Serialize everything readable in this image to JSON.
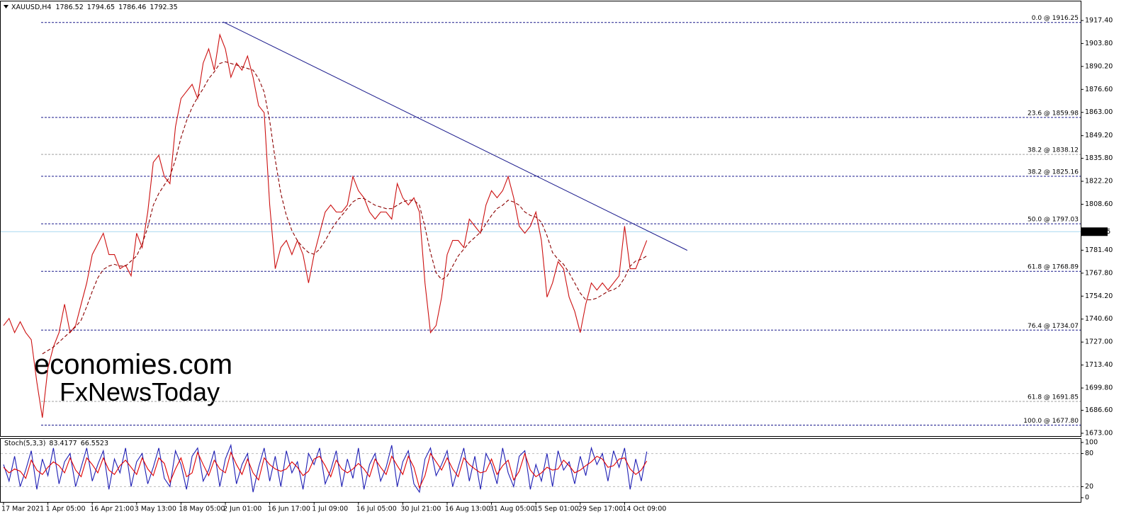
{
  "chart_data": [
    {
      "type": "line",
      "title": "XAUUSD,H4",
      "ohlc": [
        1786.52,
        1794.65,
        1786.46,
        1792.35
      ],
      "categories": [
        "17 Mar 2021",
        null,
        null,
        null,
        null,
        null,
        null,
        null,
        "1 Apr 05:00",
        null,
        null,
        null,
        null,
        null,
        null,
        null,
        "16 Apr 21:00",
        null,
        null,
        null,
        null,
        null,
        null,
        null,
        "3 May 13:00",
        null,
        null,
        null,
        null,
        null,
        null,
        null,
        "18 May 05:00",
        null,
        null,
        null,
        null,
        null,
        null,
        null,
        "2 Jun 01:00",
        null,
        null,
        null,
        null,
        null,
        null,
        null,
        "16 Jun 17:00",
        null,
        null,
        null,
        null,
        null,
        null,
        null,
        "1 Jul 09:00",
        null,
        null,
        null,
        null,
        null,
        null,
        null,
        "16 Jul 05:00",
        null,
        null,
        null,
        null,
        null,
        null,
        null,
        "30 Jul 21:00",
        null,
        null,
        null,
        null,
        null,
        null,
        null,
        "16 Aug 13:00",
        null,
        null,
        null,
        null,
        null,
        null,
        null,
        "31 Aug 05:00",
        null,
        null,
        null,
        null,
        null,
        null,
        null,
        "15 Sep 01:00",
        null,
        null,
        null,
        null,
        null,
        null,
        null,
        "29 Sep 17:00",
        null,
        null,
        null,
        null,
        null,
        null,
        null,
        "14 Oct 09:00",
        null,
        null,
        null,
        null
      ],
      "series": [
        {
          "color": "#cc1010",
          "dashed": false,
          "values": [
            1736.8,
            1741,
            1732.6,
            1739,
            1732.6,
            1728.4,
            1703.2,
            1682.2,
            1711.6,
            1724.2,
            1732.6,
            1749.4,
            1732.6,
            1736.8,
            1749.4,
            1762,
            1778.8,
            1785.1,
            1791.4,
            1778.8,
            1778.8,
            1770.4,
            1772.5,
            1766.2,
            1791.4,
            1783,
            1804,
            1833.4,
            1837.6,
            1825,
            1820.8,
            1854.4,
            1871.2,
            1875.4,
            1879.6,
            1871.2,
            1892.2,
            1900.6,
            1888,
            1909,
            1900.6,
            1883.8,
            1892.2,
            1888,
            1896.4,
            1883.8,
            1867,
            1862.8,
            1808.2,
            1770.4,
            1783,
            1787.2,
            1778.8,
            1787.2,
            1778.8,
            1762,
            1778.8,
            1791.4,
            1804,
            1808.2,
            1804,
            1804,
            1808.2,
            1825,
            1816.6,
            1812.4,
            1804,
            1799.8,
            1804,
            1804,
            1799.8,
            1820.8,
            1812.4,
            1808.2,
            1812.4,
            1804,
            1762,
            1732.6,
            1736.8,
            1753.6,
            1778.8,
            1787.2,
            1787.2,
            1783,
            1799.8,
            1795.6,
            1791.4,
            1808.2,
            1816.6,
            1812.4,
            1816.6,
            1825,
            1812.4,
            1795.6,
            1791.4,
            1795.6,
            1804,
            1787.2,
            1753.6,
            1762,
            1774.6,
            1770.4,
            1753.6,
            1745.2,
            1732.6,
            1749.4,
            1762,
            1757.8,
            1762,
            1757.8,
            1762,
            1766.2,
            1795.6,
            1770.4,
            1770.4,
            1778.8,
            1787.2
          ]
        },
        {
          "color": "#8b0000",
          "dashed": true,
          "values": [
            null,
            null,
            null,
            null,
            null,
            null,
            null,
            1720,
            1722,
            1724,
            1727,
            1730,
            1733,
            1736,
            1740,
            1748,
            1757,
            1765,
            1770,
            1772,
            1773,
            1772,
            1772,
            1775,
            1778,
            1785,
            1795,
            1808,
            1815,
            1820,
            1825,
            1835,
            1848,
            1858,
            1866,
            1872,
            1877,
            1883,
            1887,
            1892,
            1893,
            1892,
            1891,
            1890,
            1889,
            1888,
            1883,
            1875,
            1858,
            1835,
            1815,
            1802,
            1793,
            1787,
            1783,
            1780,
            1779,
            1782,
            1787,
            1793,
            1798,
            1802,
            1806,
            1810,
            1812,
            1812,
            1810,
            1808,
            1807,
            1806,
            1806,
            1808,
            1810,
            1811,
            1811,
            1808,
            1795,
            1780,
            1768,
            1764,
            1766,
            1772,
            1778,
            1782,
            1786,
            1789,
            1792,
            1797,
            1802,
            1806,
            1808,
            1811,
            1810,
            1808,
            1804,
            1802,
            1801,
            1798,
            1790,
            1780,
            1776,
            1773,
            1768,
            1762,
            1756,
            1752,
            1752,
            1753,
            1755,
            1757,
            1758,
            1760,
            1765,
            1772,
            1775,
            1776,
            1778
          ]
        }
      ],
      "ylim": [
        1670.9,
        1928.7
      ],
      "yticks": [
        {
          "value": 1917.4,
          "label": "1917.40"
        },
        {
          "value": 1903.8,
          "label": "1903.80"
        },
        {
          "value": 1890.2,
          "label": "1890.20"
        },
        {
          "value": 1876.6,
          "label": "1876.60"
        },
        {
          "value": 1863,
          "label": "1863.00"
        },
        {
          "value": 1849.2,
          "label": "1849.20"
        },
        {
          "value": 1835.8,
          "label": "1835.80"
        },
        {
          "value": 1822.2,
          "label": "1822.20"
        },
        {
          "value": 1808.6,
          "label": "1808.60"
        },
        {
          "value": 1781.4,
          "label": "1781.40"
        },
        {
          "value": 1767.8,
          "label": "1767.80"
        },
        {
          "value": 1754.2,
          "label": "1754.20"
        },
        {
          "value": 1740.6,
          "label": "1740.60"
        },
        {
          "value": 1727,
          "label": "1727.00"
        },
        {
          "value": 1713.4,
          "label": "1713.40"
        },
        {
          "value": 1699.8,
          "label": "1699.80"
        },
        {
          "value": 1686.6,
          "label": "1686.60"
        },
        {
          "value": 1673,
          "label": "1673.00"
        }
      ],
      "fib_levels": [
        {
          "value": 1916.25,
          "label": "0.0 @ 1916.25",
          "color": "#1a1a8c"
        },
        {
          "value": 1859.98,
          "label": "23.6 @ 1859.98",
          "color": "#1a1a8c"
        },
        {
          "value": 1838.12,
          "label": "38.2 @ 1838.12",
          "color": "#a0a0a0"
        },
        {
          "value": 1825.16,
          "label": "38.2 @ 1825.16",
          "color": "#1a1a8c"
        },
        {
          "value": 1797.03,
          "label": "50.0 @ 1797.03",
          "color": "#1a1a8c"
        },
        {
          "value": 1768.89,
          "label": "61.8 @ 1768.89",
          "color": "#1a1a8c"
        },
        {
          "value": 1734.07,
          "label": "76.4 @ 1734.07",
          "color": "#1a1a8c"
        },
        {
          "value": 1691.85,
          "label": "61.8 @ 1691.85",
          "color": "#a0a0a0"
        },
        {
          "value": 1677.8,
          "label": "100.0 @ 1677.80",
          "color": "#1a1a8c"
        }
      ],
      "current_price": 1792.35,
      "trendline": {
        "x": [
          39.6,
          123.3
        ],
        "values": [
          1916.56,
          1781.3
        ],
        "color": "#1a1a8c"
      },
      "watermark": [
        "economies.com",
        "FxNewsToday"
      ]
    },
    {
      "type": "line",
      "title": "Stoch(5,3,3)",
      "readings": [
        83.4177,
        66.5523
      ],
      "series": [
        {
          "color": "#1e1eb4",
          "dashed": false,
          "values": [
            60,
            30,
            75,
            20,
            50,
            85,
            15,
            70,
            40,
            90,
            25,
            65,
            80,
            20,
            55,
            90,
            30,
            60,
            85,
            15,
            70,
            45,
            90,
            20,
            65,
            80,
            25,
            55,
            90,
            35,
            20,
            85,
            60,
            15,
            75,
            90,
            30,
            50,
            85,
            20,
            70,
            95,
            25,
            60,
            80,
            10,
            55,
            90,
            30,
            75,
            20,
            85,
            45,
            65,
            15,
            80,
            60,
            90,
            25,
            50,
            85,
            20,
            70,
            35,
            90,
            15,
            60,
            80,
            30,
            55,
            95,
            20,
            65,
            85,
            25,
            10,
            70,
            90,
            40,
            60,
            85,
            20,
            55,
            90,
            30,
            75,
            15,
            80,
            60,
            25,
            90,
            45,
            20,
            75,
            85,
            15,
            60,
            30,
            80,
            20,
            85,
            50,
            65,
            25,
            75,
            40,
            90,
            60,
            80,
            30,
            85,
            55,
            90,
            15,
            70,
            30,
            83.4177
          ]
        },
        {
          "color": "#e00000",
          "dashed": false,
          "values": [
            55,
            45,
            52,
            48,
            35,
            68,
            50,
            42,
            55,
            65,
            58,
            45,
            72,
            50,
            38,
            72,
            60,
            45,
            72,
            50,
            42,
            58,
            68,
            55,
            42,
            72,
            52,
            40,
            72,
            62,
            28,
            52,
            72,
            38,
            45,
            82,
            60,
            40,
            68,
            52,
            45,
            82,
            60,
            42,
            70,
            45,
            32,
            72,
            60,
            52,
            48,
            52,
            65,
            55,
            40,
            48,
            70,
            75,
            58,
            38,
            68,
            52,
            45,
            52,
            62,
            52,
            38,
            70,
            55,
            42,
            75,
            58,
            42,
            75,
            55,
            18,
            40,
            80,
            65,
            50,
            72,
            52,
            38,
            72,
            60,
            52,
            45,
            48,
            70,
            42,
            58,
            68,
            32,
            48,
            80,
            50,
            38,
            45,
            55,
            50,
            52,
            68,
            58,
            45,
            50,
            58,
            65,
            75,
            70,
            55,
            58,
            70,
            72,
            52,
            42,
            50,
            66.5523
          ]
        }
      ],
      "ylim": [
        -6.4,
        106.4
      ],
      "yticks": [
        100,
        80,
        20,
        0
      ],
      "levels": [
        80,
        20
      ]
    }
  ]
}
